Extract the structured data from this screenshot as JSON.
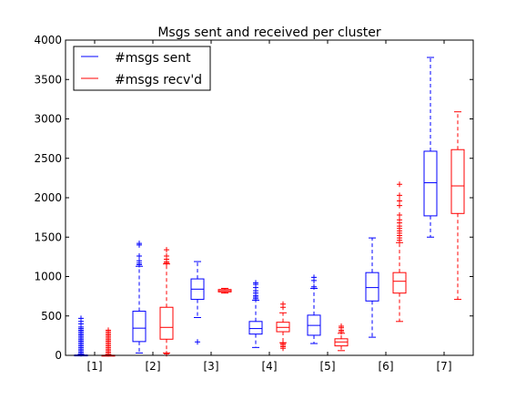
{
  "colors": {
    "sent": "#0000ff",
    "recv": "#ff0000",
    "axis": "#000000",
    "background": "#ffffff"
  },
  "chart_data": {
    "type": "boxplot",
    "title": "Msgs sent and received per cluster",
    "xlabel": "",
    "ylabel": "",
    "ylim": [
      0,
      4000
    ],
    "yticks": [
      0,
      500,
      1000,
      1500,
      2000,
      2500,
      3000,
      3500,
      4000
    ],
    "categories": [
      "[1]",
      "[2]",
      "[3]",
      "[4]",
      "[5]",
      "[6]",
      "[7]"
    ],
    "grid": false,
    "legend": "top-left",
    "series": [
      {
        "name": "#msgs sent",
        "color": "#0000ff",
        "boxes": [
          {
            "whislo": 0,
            "q1": 0,
            "med": 0,
            "q3": 5,
            "whishi": 10,
            "fliers": [
              20,
              40,
              60,
              80,
              100,
              120,
              140,
              160,
              180,
              200,
              220,
              240,
              260,
              280,
              300,
              320,
              340,
              360,
              400,
              430,
              470
            ]
          },
          {
            "whislo": 30,
            "q1": 175,
            "med": 345,
            "q3": 560,
            "whishi": 1130,
            "fliers": [
              1150,
              1170,
              1200,
              1260,
              1400,
              1420
            ]
          },
          {
            "whislo": 480,
            "q1": 710,
            "med": 840,
            "q3": 970,
            "whishi": 1190,
            "fliers": [
              170
            ]
          },
          {
            "whislo": 100,
            "q1": 270,
            "med": 340,
            "q3": 430,
            "whishi": 700,
            "fliers": [
              720,
              740,
              760,
              790,
              820,
              860,
              900,
              920
            ]
          },
          {
            "whislo": 150,
            "q1": 255,
            "med": 380,
            "q3": 510,
            "whishi": 850,
            "fliers": [
              870,
              950,
              990
            ]
          },
          {
            "whislo": 230,
            "q1": 690,
            "med": 860,
            "q3": 1050,
            "whishi": 1490,
            "fliers": []
          },
          {
            "whislo": 1500,
            "q1": 1770,
            "med": 2190,
            "q3": 2590,
            "whishi": 3780,
            "fliers": []
          }
        ]
      },
      {
        "name": "#msgs recv'd",
        "color": "#ff0000",
        "boxes": [
          {
            "whislo": 0,
            "q1": 0,
            "med": 0,
            "q3": 2,
            "whishi": 5,
            "fliers": [
              20,
              40,
              60,
              80,
              100,
              120,
              140,
              160,
              180,
              200,
              220,
              240,
              260,
              280,
              300,
              320
            ]
          },
          {
            "whislo": 30,
            "q1": 205,
            "med": 355,
            "q3": 610,
            "whishi": 1160,
            "fliers": [
              20,
              1170,
              1190,
              1220,
              1260,
              1340
            ]
          },
          {
            "whislo": 790,
            "q1": 805,
            "med": 820,
            "q3": 835,
            "whishi": 850,
            "fliers": []
          },
          {
            "whislo": 160,
            "q1": 300,
            "med": 355,
            "q3": 420,
            "whishi": 540,
            "fliers": [
              90,
              110,
              130,
              150,
              610,
              650
            ]
          },
          {
            "whislo": 60,
            "q1": 120,
            "med": 170,
            "q3": 210,
            "whishi": 280,
            "fliers": [
              300,
              320,
              350,
              370
            ]
          },
          {
            "whislo": 430,
            "q1": 790,
            "med": 940,
            "q3": 1050,
            "whishi": 1430,
            "fliers": [
              1460,
              1490,
              1520,
              1550,
              1580,
              1610,
              1640,
              1680,
              1720,
              1780,
              1900,
              1960,
              2030,
              2170
            ]
          },
          {
            "whislo": 710,
            "q1": 1800,
            "med": 2150,
            "q3": 2610,
            "whishi": 3090,
            "fliers": []
          }
        ]
      }
    ]
  }
}
